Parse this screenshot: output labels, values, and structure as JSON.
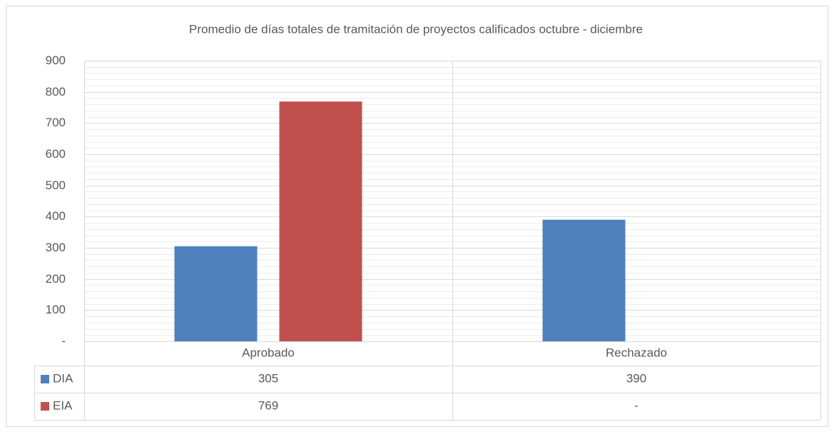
{
  "chart_data": {
    "type": "bar",
    "title": "Promedio de días totales de tramitación de proyectos calificados octubre - diciembre",
    "categories": [
      "Aprobado",
      "Rechazado"
    ],
    "series": [
      {
        "name": "DIA",
        "color": "#4f81bd",
        "values": [
          305,
          390
        ]
      },
      {
        "name": "EIA",
        "color": "#c0504d",
        "values": [
          769,
          null
        ],
        "value_labels": [
          "769",
          "-"
        ]
      }
    ],
    "ylim": [
      0,
      900
    ],
    "yticks": [
      {
        "value": 0,
        "label": "-"
      },
      100,
      200,
      300,
      400,
      500,
      600,
      700,
      800,
      900
    ],
    "grid": true,
    "minor_grid": true,
    "data_table": true
  }
}
